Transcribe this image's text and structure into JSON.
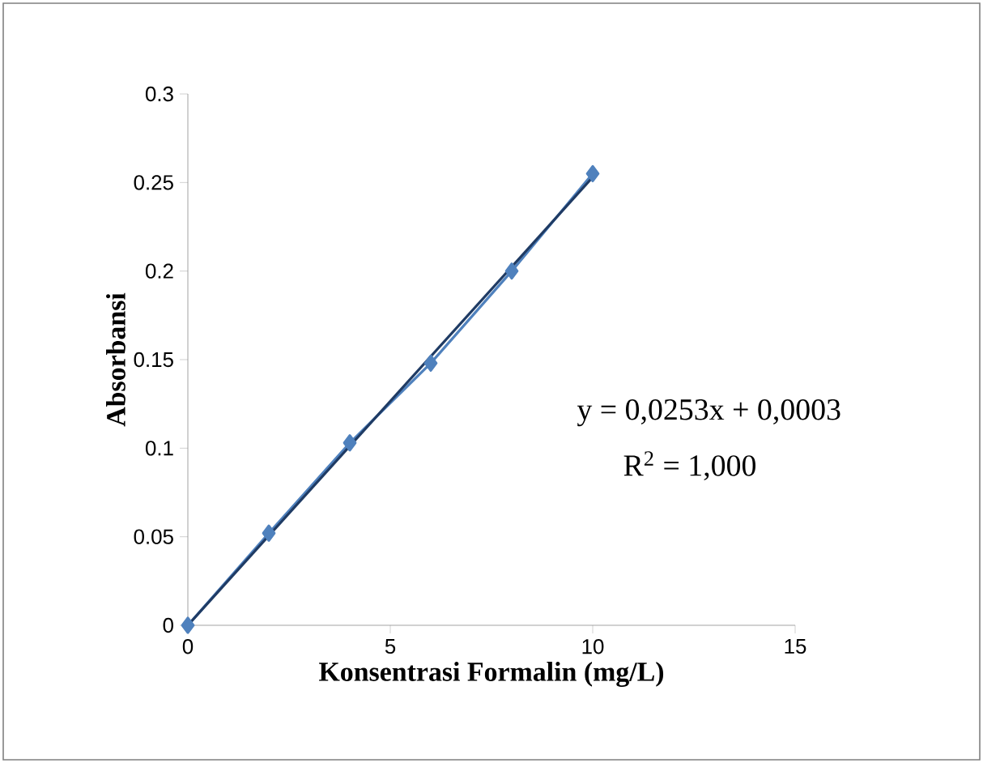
{
  "chart_data": {
    "type": "line",
    "xlabel": "Konsentrasi Formalin (mg/L)",
    "ylabel": "Absorbansi",
    "x": [
      0,
      2,
      4,
      6,
      8,
      10
    ],
    "series": [
      {
        "color": "#4f81bd",
        "values": [
          0,
          0.052,
          0.103,
          0.148,
          0.2,
          0.255
        ],
        "marker": "diamond"
      },
      {
        "type": "line",
        "color": "#1f3b64",
        "x": [
          0,
          10
        ],
        "values": [
          0,
          0.253
        ],
        "marker": "none"
      }
    ],
    "xlim": [
      0,
      15
    ],
    "ylim": [
      0,
      0.3
    ],
    "xticks": [
      0,
      5,
      10,
      15
    ],
    "yticks": [
      0,
      0.05,
      0.1,
      0.15,
      0.2,
      0.25,
      0.3
    ],
    "grid": false,
    "annotations": [
      "y = 0,0253x + 0,0003",
      "R$^{2}$ = 1,000"
    ]
  }
}
